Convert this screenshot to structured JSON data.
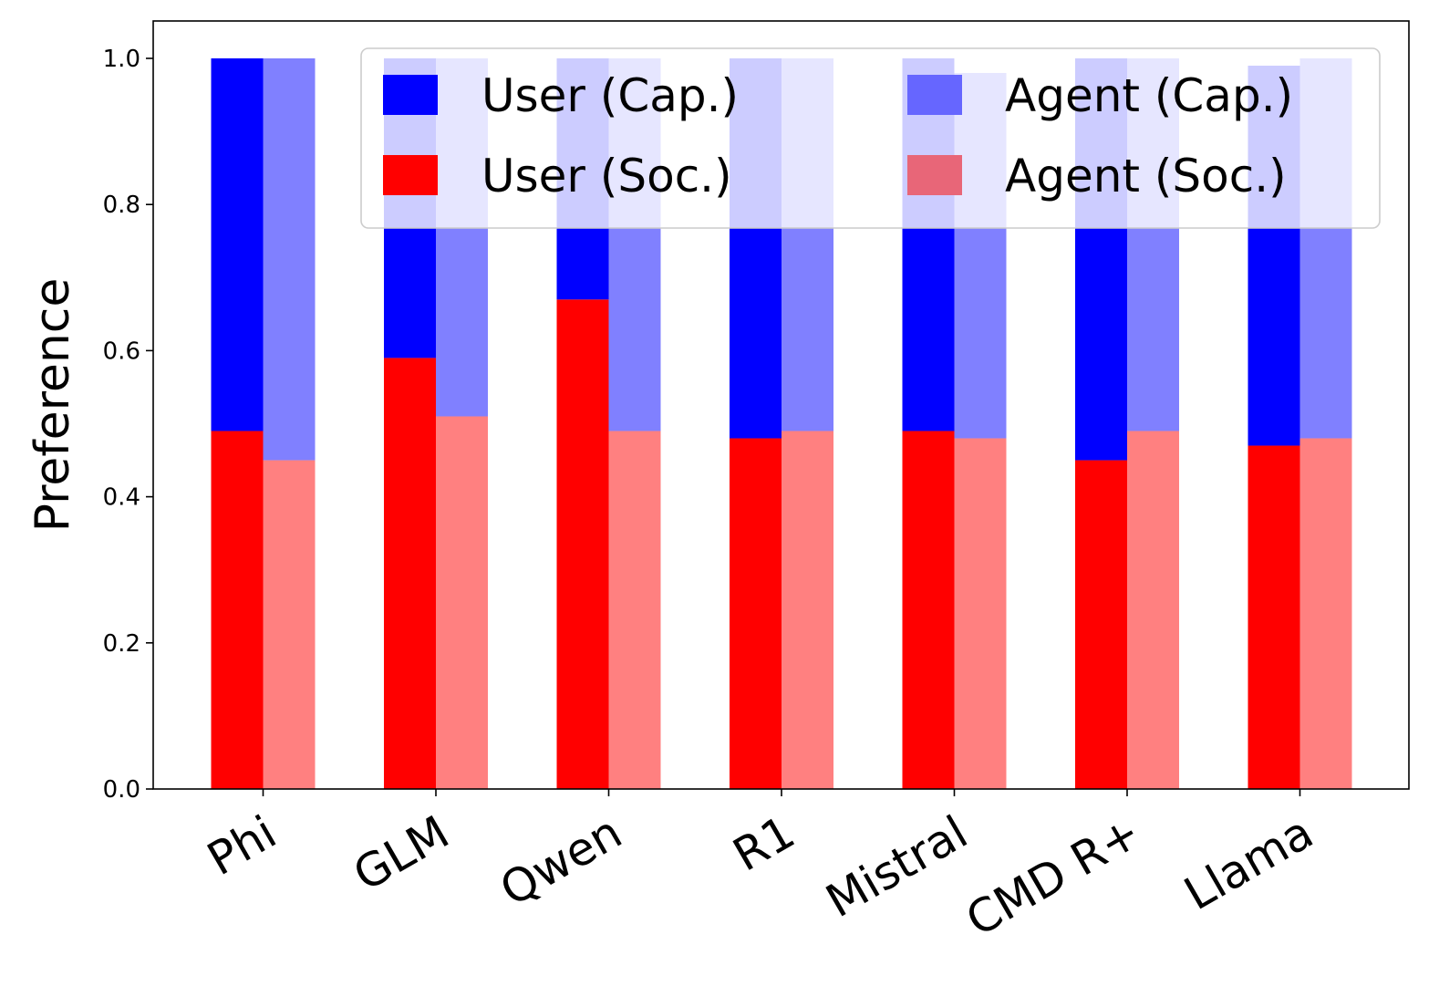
{
  "chart_data": {
    "type": "bar",
    "stacked": true,
    "title": "",
    "xlabel": "",
    "ylabel": "Preference",
    "ylim": [
      0,
      1.05
    ],
    "yticks": [
      "0.0",
      "0.2",
      "0.4",
      "0.6",
      "0.8",
      "1.0"
    ],
    "grid": false,
    "legend_position": "top-right",
    "categories": [
      "Phi",
      "GLM",
      "Qwen",
      "R1",
      "Mistral",
      "CMD R+",
      "Llama"
    ],
    "series": [
      {
        "name": "User (Cap.)",
        "group": "User",
        "layer": "top",
        "color": "#0000ff",
        "values": [
          0.51,
          0.41,
          0.33,
          0.52,
          0.51,
          0.55,
          0.52
        ]
      },
      {
        "name": "Agent (Cap.)",
        "group": "Agent",
        "layer": "top",
        "color": "#8080ff",
        "values": [
          0.55,
          0.49,
          0.51,
          0.51,
          0.5,
          0.51,
          0.52
        ]
      },
      {
        "name": "User (Soc.)",
        "group": "User",
        "layer": "bottom",
        "color": "#ff0000",
        "values": [
          0.49,
          0.59,
          0.67,
          0.48,
          0.49,
          0.45,
          0.47
        ]
      },
      {
        "name": "Agent (Soc.)",
        "group": "Agent",
        "layer": "bottom",
        "color": "#ff8080",
        "values": [
          0.45,
          0.51,
          0.49,
          0.49,
          0.48,
          0.49,
          0.48
        ]
      }
    ]
  }
}
